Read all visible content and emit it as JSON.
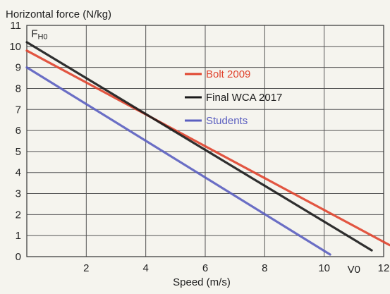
{
  "chart_data": {
    "type": "line",
    "title": "",
    "ylabel": "Horizontal force (N/kg)",
    "xlabel": "Speed (m/s)",
    "xlim": [
      0,
      12
    ],
    "ylim": [
      0,
      11
    ],
    "x_ticks": [
      2,
      4,
      6,
      8,
      10,
      12
    ],
    "x_tick_labels": [
      "2",
      "4",
      "6",
      "8",
      "10",
      "12"
    ],
    "y_ticks": [
      0,
      1,
      2,
      3,
      4,
      5,
      6,
      7,
      8,
      9,
      10,
      11
    ],
    "y_tick_labels": [
      "0",
      "1",
      "2",
      "3",
      "4",
      "5",
      "6",
      "7",
      "8",
      "9",
      "10",
      "11"
    ],
    "grid": true,
    "legend_position": "upper-right",
    "annotations": [
      {
        "text": "F",
        "sub": "H0",
        "x": 0.15,
        "y": 10.45
      },
      {
        "text": "V0",
        "x": 11.0,
        "y": -0.6
      }
    ],
    "series": [
      {
        "name": "Bolt 2009",
        "color": "#e0442e",
        "x": [
          0,
          12.2
        ],
        "y": [
          9.8,
          0.55
        ]
      },
      {
        "name": "Final WCA 2017",
        "color": "#1a1a1a",
        "x": [
          0,
          11.6
        ],
        "y": [
          10.2,
          0.3
        ]
      },
      {
        "name": "Students",
        "color": "#5b5fc0",
        "x": [
          0,
          10.2
        ],
        "y": [
          9.0,
          0.1
        ]
      }
    ]
  }
}
